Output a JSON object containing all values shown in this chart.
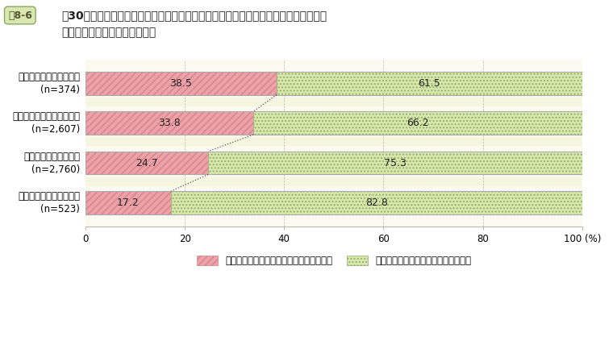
{
  "title_box": "図8-6",
  "title_main": "【30代職員調査】自分の適性や将来のキャリア形成に関するイメージの有無と今後の\nキャリア形成等に関する安心感",
  "categories": [
    "具体的なイメージがある\n(n=374)",
    "ある程度のイメージがある\n(n=2,607)",
    "あまりイメージがない\n(n=2,760)",
    "ほとんどイメージがない\n(n=523)"
  ],
  "anshin_values": [
    38.5,
    33.8,
    24.7,
    17.2
  ],
  "fuantei_values": [
    61.5,
    66.2,
    75.3,
    82.8
  ],
  "anshin_color": "#f0a0a8",
  "anshin_hatch": "////",
  "fuantei_color": "#d8eaaa",
  "fuantei_hatch": "....",
  "bar_outline_color": "#aaaaaa",
  "background_color": "#f5f5e0",
  "plot_bg_color": "#fafaf0",
  "grid_color": "#bbbbaa",
  "legend_anshin": "安心（安心している＋概ね安心している）",
  "legend_fuantei": "不安（少し不安である＋不安である）",
  "xlim": [
    0,
    100
  ],
  "xticks": [
    0,
    20,
    40,
    60,
    80,
    100
  ],
  "title_fontsize": 10,
  "label_fontsize": 8.5,
  "value_fontsize": 9,
  "legend_fontsize": 8.5,
  "titlebox_color": "#d8e8b0",
  "titlebox_edge": "#8aaa60"
}
